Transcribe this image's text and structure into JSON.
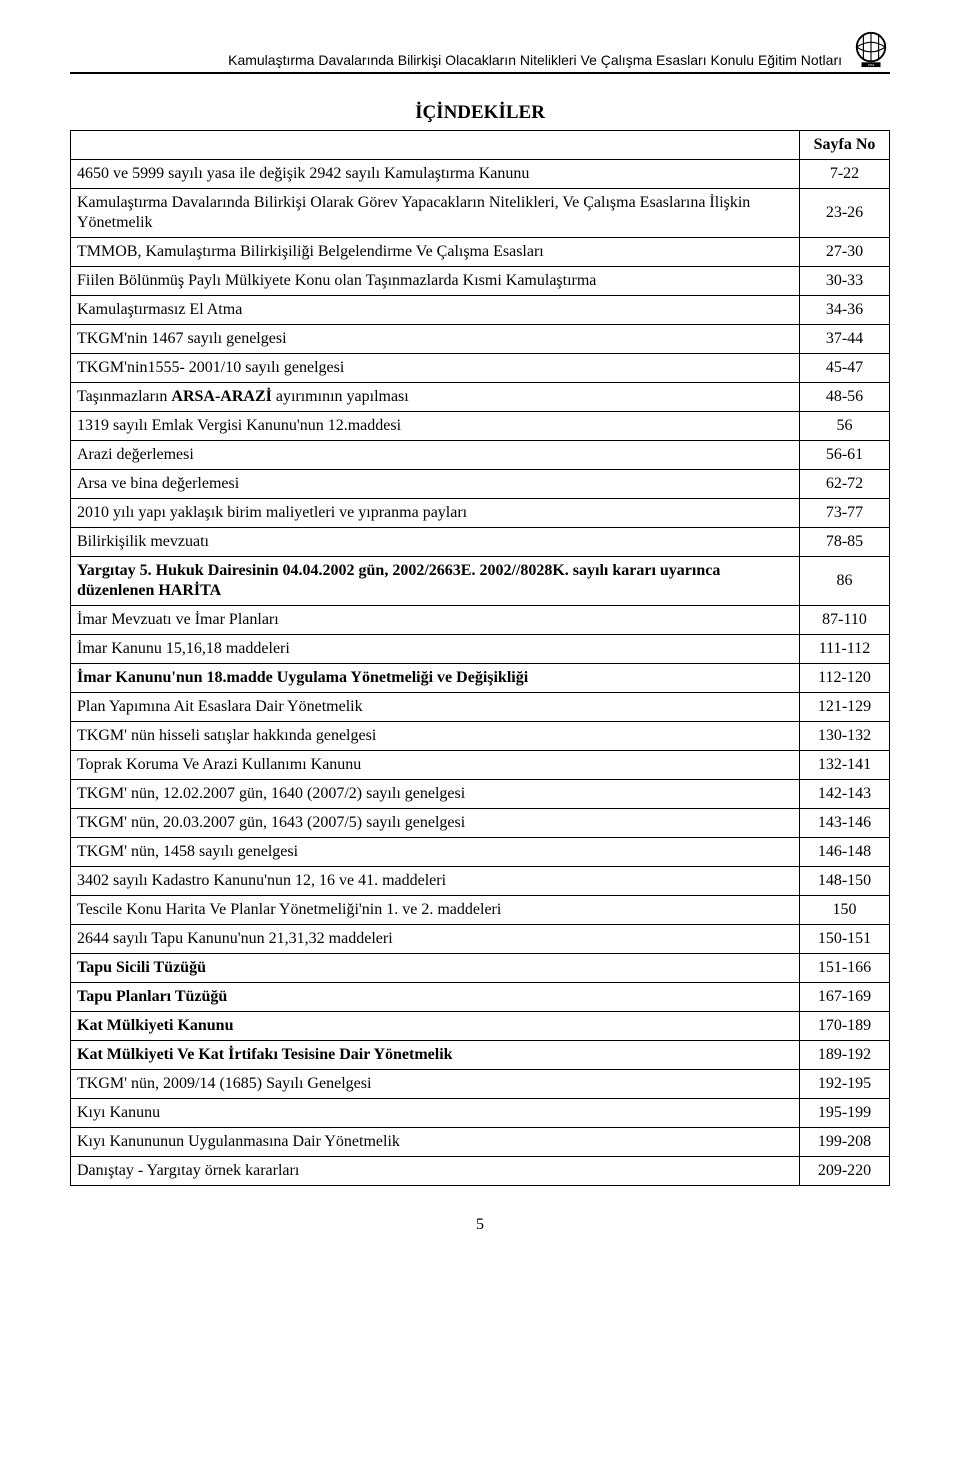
{
  "header": {
    "text": "Kamulaştırma Davalarında Bilirkişi Olacakların Nitelikleri Ve Çalışma Esasları Konulu Eğitim Notları"
  },
  "title": "İÇİNDEKİLER",
  "pageHeader": "Sayfa No",
  "rows": [
    {
      "label": "4650 ve 5999 sayılı yasa ile değişik 2942 sayılı Kamulaştırma Kanunu",
      "page": "7-22",
      "bold": false
    },
    {
      "label": "Kamulaştırma Davalarında Bilirkişi Olarak Görev Yapacakların Nitelikleri, Ve Çalışma Esaslarına İlişkin Yönetmelik",
      "page": "23-26",
      "bold": false
    },
    {
      "label": "TMMOB, Kamulaştırma Bilirkişiliği Belgelendirme Ve Çalışma Esasları",
      "page": "27-30",
      "bold": false
    },
    {
      "label": "Fiilen Bölünmüş Paylı Mülkiyete Konu olan Taşınmazlarda Kısmi Kamulaştırma",
      "page": "30-33",
      "bold": false
    },
    {
      "label": "Kamulaştırmasız El Atma",
      "page": "34-36",
      "bold": false
    },
    {
      "label": "TKGM'nin 1467 sayılı genelgesi",
      "page": "37-44",
      "bold": false
    },
    {
      "label": "TKGM'nin1555- 2001/10 sayılı genelgesi",
      "page": "45-47",
      "bold": false
    },
    {
      "label_html": "Taşınmazların <b>ARSA-ARAZİ</b> ayırımının yapılması",
      "page": "48-56",
      "bold": false
    },
    {
      "label": "1319 sayılı Emlak Vergisi Kanunu'nun 12.maddesi",
      "page": "56",
      "bold": false
    },
    {
      "label": "Arazi değerlemesi",
      "page": "56-61",
      "bold": false
    },
    {
      "label": "Arsa ve bina değerlemesi",
      "page": "62-72",
      "bold": false
    },
    {
      "label": "2010 yılı yapı yaklaşık birim maliyetleri ve yıpranma payları",
      "page": "73-77",
      "bold": false
    },
    {
      "label": "Bilirkişilik mevzuatı",
      "page": "78-85",
      "bold": false
    },
    {
      "label_html": "<b>Yargıtay 5. Hukuk Dairesinin 04.04.2002 gün, 2002/2663E. 2002//8028K. sayılı kararı uyarınca düzenlenen HARİTA</b>",
      "page": "86",
      "bold": false
    },
    {
      "label": "İmar Mevzuatı ve İmar Planları",
      "page": "87-110",
      "bold": false
    },
    {
      "label": "İmar Kanunu 15,16,18 maddeleri",
      "page": "111-112",
      "bold": false
    },
    {
      "label": "İmar Kanunu'nun 18.madde Uygulama Yönetmeliği ve Değişikliği",
      "page": "112-120",
      "bold": true
    },
    {
      "label": "Plan Yapımına Ait Esaslara Dair Yönetmelik",
      "page": "121-129",
      "bold": false
    },
    {
      "label": "TKGM' nün hisseli satışlar hakkında genelgesi",
      "page": "130-132",
      "bold": false
    },
    {
      "label": "Toprak Koruma Ve Arazi Kullanımı Kanunu",
      "page": "132-141",
      "bold": false
    },
    {
      "label": "TKGM' nün, 12.02.2007 gün, 1640 (2007/2) sayılı genelgesi",
      "page": "142-143",
      "bold": false
    },
    {
      "label": "TKGM' nün, 20.03.2007 gün, 1643 (2007/5) sayılı genelgesi",
      "page": "143-146",
      "bold": false
    },
    {
      "label": "TKGM' nün, 1458 sayılı genelgesi",
      "page": "146-148",
      "bold": false
    },
    {
      "label": "3402 sayılı Kadastro Kanunu'nun 12, 16 ve 41. maddeleri",
      "page": "148-150",
      "bold": false
    },
    {
      "label": "Tescile Konu Harita Ve Planlar Yönetmeliği'nin 1. ve 2. maddeleri",
      "page": "150",
      "bold": false
    },
    {
      "label": "2644 sayılı Tapu Kanunu'nun 21,31,32 maddeleri",
      "page": "150-151",
      "bold": false
    },
    {
      "label": "Tapu Sicili Tüzüğü",
      "page": "151-166",
      "bold": true
    },
    {
      "label": "Tapu Planları Tüzüğü",
      "page": "167-169",
      "bold": true
    },
    {
      "label": "Kat Mülkiyeti Kanunu",
      "page": "170-189",
      "bold": true
    },
    {
      "label": "Kat Mülkiyeti Ve Kat İrtifakı Tesisine Dair Yönetmelik",
      "page": "189-192",
      "bold": true
    },
    {
      "label": "TKGM' nün, 2009/14 (1685) Sayılı Genelgesi",
      "page": "192-195",
      "bold": false
    },
    {
      "label": "Kıyı Kanunu",
      "page": "195-199",
      "bold": false
    },
    {
      "label": "Kıyı Kanununun Uygulanmasına Dair Yönetmelik",
      "page": "199-208",
      "bold": false
    },
    {
      "label": "Danıştay - Yargıtay örnek kararları",
      "page": "209-220",
      "bold": false
    }
  ],
  "pageNumber": "5",
  "colors": {
    "text": "#000000",
    "background": "#ffffff",
    "border": "#000000"
  },
  "typography": {
    "body_font": "Times New Roman",
    "header_font": "Arial",
    "body_size_pt": 12,
    "header_size_pt": 10,
    "title_size_pt": 14
  }
}
